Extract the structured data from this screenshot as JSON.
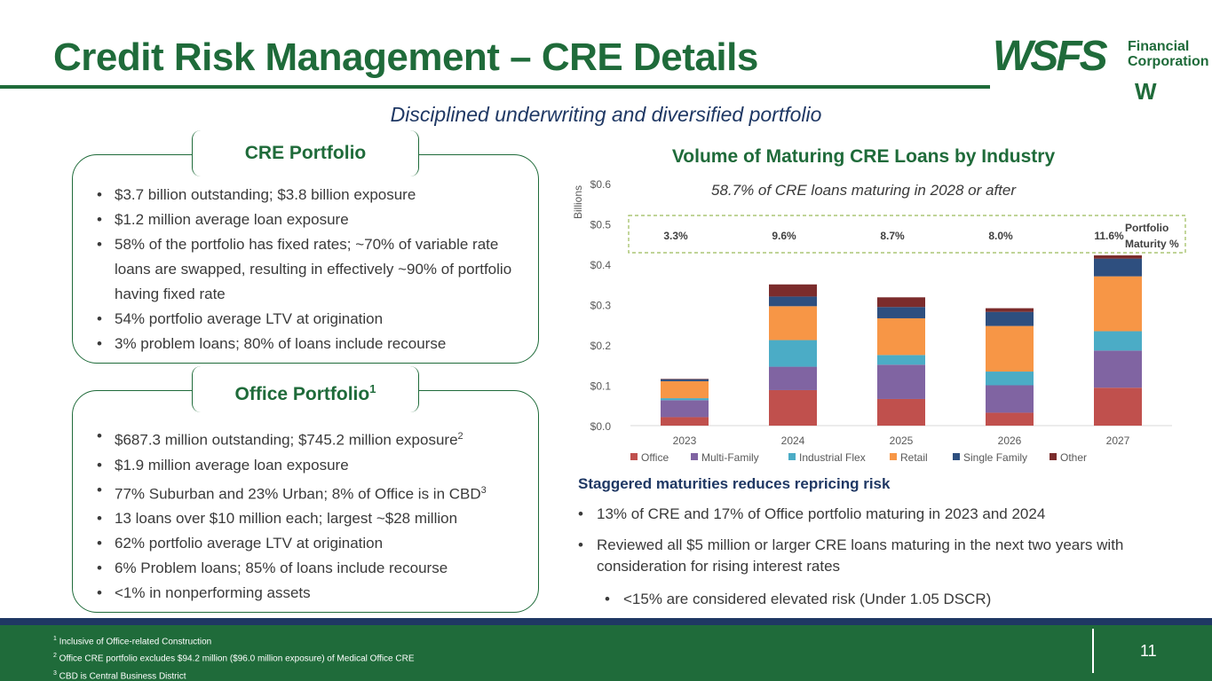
{
  "header": {
    "title": "Credit Risk Management – CRE Details",
    "subtitle": "Disciplined underwriting and diversified portfolio"
  },
  "logo": {
    "main": "WSFS",
    "line1": "Financial",
    "line2": "Corporation",
    "mark": "W"
  },
  "cre_portfolio": {
    "heading": "CRE Portfolio",
    "bullets": [
      "$3.7 billion outstanding; $3.8 billion exposure",
      "$1.2 million average loan exposure",
      "58% of the portfolio has fixed rates; ~70% of variable rate loans are swapped, resulting in effectively ~90% of portfolio having fixed rate",
      "54% portfolio average LTV at origination",
      "3% problem loans; 80% of loans include recourse"
    ]
  },
  "office_portfolio": {
    "heading": "Office Portfolio",
    "heading_sup": "1",
    "bullets": [
      {
        "text": "$687.3 million outstanding; $745.2 million exposure",
        "sup": "2"
      },
      {
        "text": "$1.9 million average loan exposure",
        "sup": ""
      },
      {
        "text": "77% Suburban and 23% Urban; 8% of Office is in CBD",
        "sup": "3"
      },
      {
        "text": "13 loans over $10 million each; largest ~$28 million",
        "sup": ""
      },
      {
        "text": "62% portfolio average LTV at origination",
        "sup": ""
      },
      {
        "text": "6% Problem loans; 85% of loans include recourse",
        "sup": ""
      },
      {
        "text": "<1% in nonperforming assets",
        "sup": ""
      }
    ]
  },
  "chart_data": {
    "type": "bar",
    "stacked": true,
    "title": "Volume of Maturing CRE Loans by Industry",
    "subtitle": "58.7% of CRE loans maturing in 2028 or after",
    "ylabel": "Billions",
    "xlabel": "",
    "ylim": [
      0,
      0.6
    ],
    "yticks": [
      0.0,
      0.1,
      0.2,
      0.3,
      0.4,
      0.5,
      0.6
    ],
    "ytick_labels": [
      "$0.0",
      "$0.1",
      "$0.2",
      "$0.3",
      "$0.4",
      "$0.5",
      "$0.6"
    ],
    "categories": [
      "2023",
      "2024",
      "2025",
      "2026",
      "2027"
    ],
    "series": [
      {
        "name": "Office",
        "color": "#c0504d",
        "values": [
          0.021,
          0.088,
          0.066,
          0.032,
          0.094
        ]
      },
      {
        "name": "Multi-Family",
        "color": "#8064a2",
        "values": [
          0.042,
          0.058,
          0.085,
          0.068,
          0.092
        ]
      },
      {
        "name": "Industrial Flex",
        "color": "#4bacc6",
        "values": [
          0.005,
          0.066,
          0.024,
          0.034,
          0.048
        ]
      },
      {
        "name": "Retail",
        "color": "#f79646",
        "values": [
          0.042,
          0.084,
          0.091,
          0.113,
          0.136
        ]
      },
      {
        "name": "Single Family",
        "color": "#2e4f7f",
        "values": [
          0.005,
          0.024,
          0.028,
          0.035,
          0.044
        ]
      },
      {
        "name": "Other",
        "color": "#7b2c2c",
        "values": [
          0.001,
          0.03,
          0.024,
          0.009,
          0.008
        ]
      }
    ],
    "maturity_pct": [
      "3.3%",
      "9.6%",
      "8.7%",
      "8.0%",
      "11.6%"
    ],
    "maturity_label_line1": "Portfolio",
    "maturity_label_line2": "Maturity %",
    "legend_position": "bottom"
  },
  "staggered": {
    "heading": "Staggered maturities reduces repricing risk",
    "bullet1": "13% of CRE and 17% of Office portfolio maturing in 2023 and 2024",
    "bullet2": "Reviewed all $5 million or larger CRE loans maturing in the next two years with consideration for rising interest rates",
    "sub_bullet": "<15% are considered elevated risk (Under 1.05 DSCR)"
  },
  "footer": {
    "notes": [
      {
        "sup": "1",
        "text": " Inclusive of Office-related Construction"
      },
      {
        "sup": "2",
        "text": " Office CRE portfolio excludes $94.2 million ($96.0 million exposure) of Medical Office CRE"
      },
      {
        "sup": "3",
        "text": " CBD is Central Business District"
      }
    ],
    "page_number": "11"
  },
  "colors": {
    "brand_green": "#1f6b3a",
    "navy": "#1f3864"
  }
}
